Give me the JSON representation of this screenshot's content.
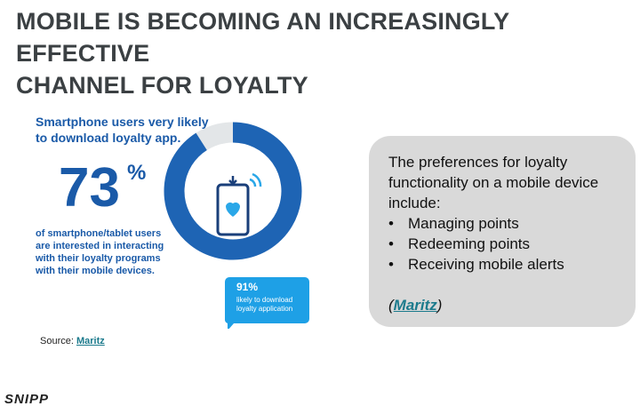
{
  "header": {
    "title_lines": [
      "MOBILE IS BECOMING AN INCREASINGLY EFFECTIVE",
      "CHANNEL FOR LOYALTY"
    ]
  },
  "infographic": {
    "heading_lines": [
      "Smartphone users very likely",
      "to download loyalty app."
    ],
    "stat": "73",
    "stat_unit": "%",
    "description_lines": [
      "of smartphone/tablet users",
      "are interested in interacting",
      "with their loyalty programs",
      "with their mobile devices."
    ],
    "donut": {
      "value": 91,
      "label": "91%",
      "caption_lines": [
        "likely to download",
        "loyalty application"
      ]
    }
  },
  "callout": {
    "intro_lines": [
      "The preferences for loyalty",
      "functionality on a mobile device",
      "include:"
    ],
    "items": [
      "Managing points",
      "Redeeming points",
      "Receiving mobile alerts"
    ],
    "source_link": "Maritz"
  },
  "source": {
    "label": "Source:",
    "link": "Maritz"
  },
  "footer": {
    "logo": "SNIPP"
  }
}
